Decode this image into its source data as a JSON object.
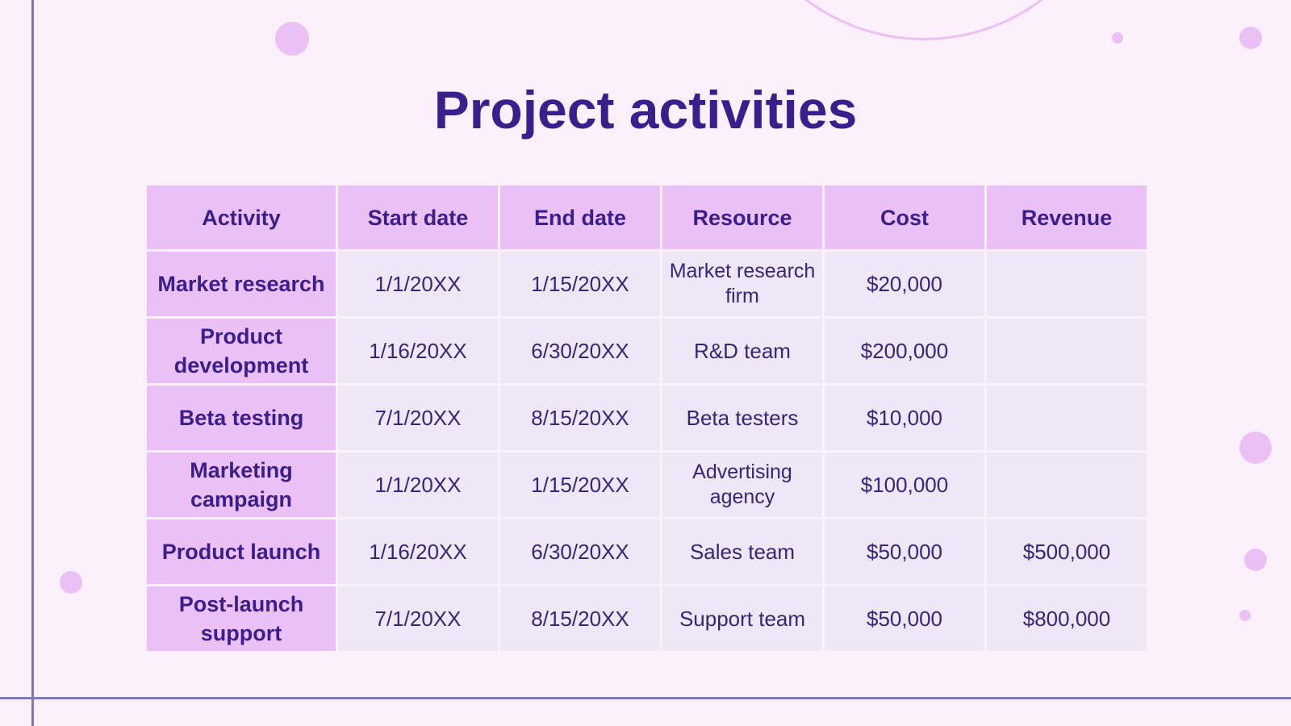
{
  "slide": {
    "title": "Project activities"
  },
  "table": {
    "headers": [
      "Activity",
      "Start date",
      "End date",
      "Resource",
      "Cost",
      "Revenue"
    ],
    "rows": [
      [
        "Market research",
        "1/1/20XX",
        "1/15/20XX",
        "Market research firm",
        "$20,000",
        ""
      ],
      [
        "Product development",
        "1/16/20XX",
        "6/30/20XX",
        "R&D team",
        "$200,000",
        ""
      ],
      [
        "Beta testing",
        "7/1/20XX",
        "8/15/20XX",
        "Beta testers",
        "$10,000",
        ""
      ],
      [
        "Marketing campaign",
        "1/1/20XX",
        "1/15/20XX",
        "Advertising agency",
        "$100,000",
        ""
      ],
      [
        "Product launch",
        "1/16/20XX",
        "6/30/20XX",
        "Sales team",
        "$50,000",
        "$500,000"
      ],
      [
        "Post-launch support",
        "7/1/20XX",
        "8/15/20XX",
        "Support team",
        "$50,000",
        "$800,000"
      ]
    ]
  },
  "colors": {
    "background": "#fcf0fc",
    "accent_pink": "#ebc0f5",
    "title_purple": "#3a1e8c",
    "line_slate": "#7b7cb8",
    "cell_gray": "#efe7f5"
  }
}
